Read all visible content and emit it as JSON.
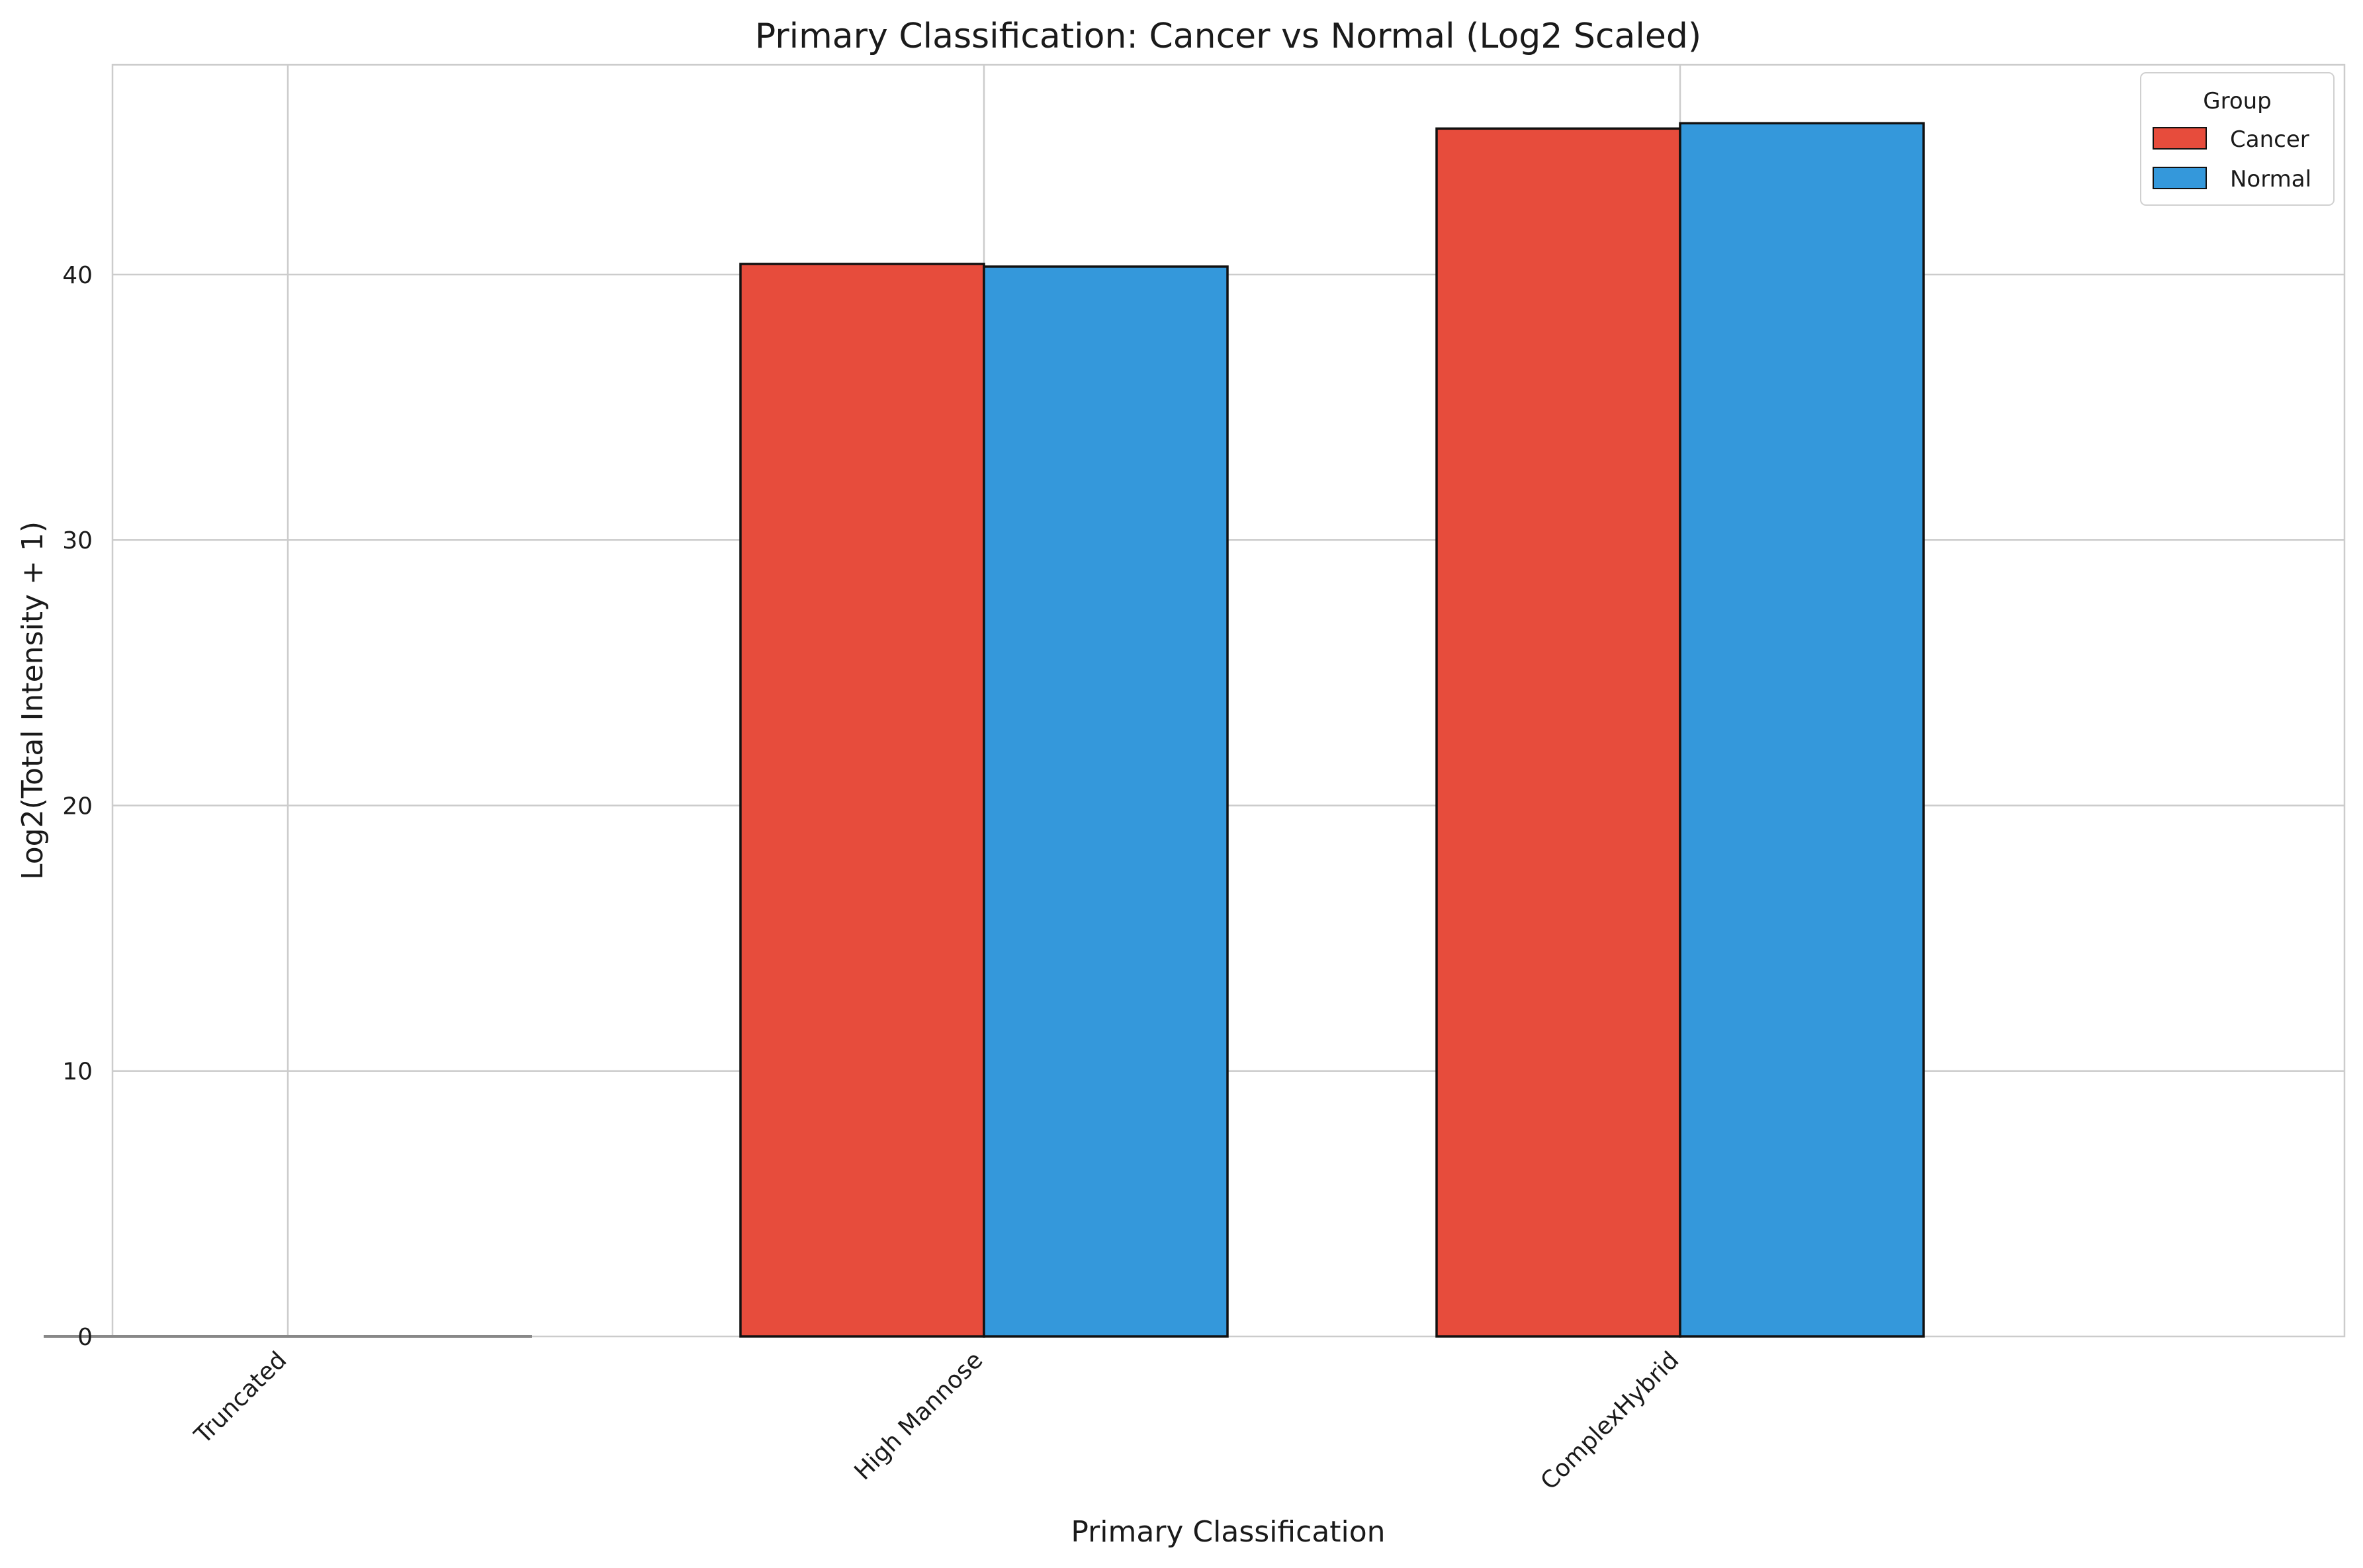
{
  "chart_data": {
    "type": "bar",
    "title": "Primary Classification: Cancer vs Normal (Log2 Scaled)",
    "xlabel": "Primary Classification",
    "ylabel": "Log2(Total Intensity + 1)",
    "categories": [
      "Truncated",
      "High Mannose",
      "ComplexHybrid"
    ],
    "series": [
      {
        "name": "Cancer",
        "color": "#e74c3c",
        "values": [
          0,
          40.4,
          45.5
        ]
      },
      {
        "name": "Normal",
        "color": "#3498db",
        "values": [
          0,
          40.3,
          45.7
        ]
      }
    ],
    "ylim": [
      0,
      47.9
    ],
    "yticks": [
      0,
      10,
      20,
      30,
      40
    ],
    "grid": true,
    "legend": {
      "title": "Group",
      "position": "top-right"
    }
  }
}
